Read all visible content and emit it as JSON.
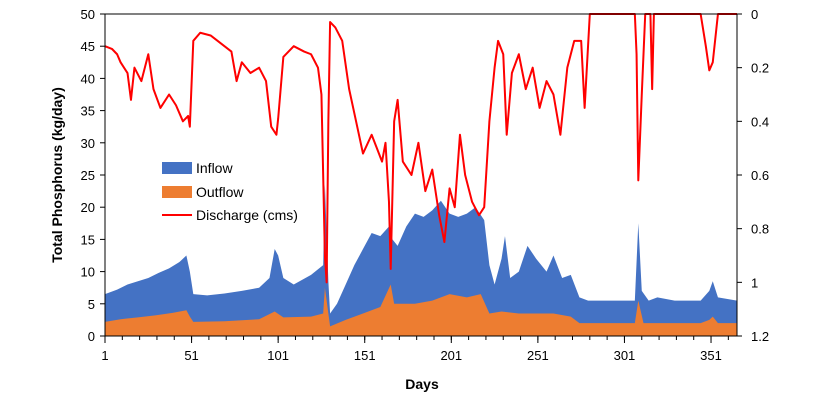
{
  "chart_data": {
    "type": "area",
    "title": "",
    "xlabel": "Days",
    "ylabel": "Total Phosphorus (kg/day)",
    "xlim": [
      1,
      366
    ],
    "ylim": [
      0,
      50
    ],
    "y2lim": [
      0,
      1.2
    ],
    "y2_inverted": true,
    "grid": false,
    "legend_position": "center-left",
    "x_ticks": [
      "1",
      "51",
      "101",
      "151",
      "201",
      "251",
      "301",
      "351"
    ],
    "y_ticks": [
      "0",
      "5",
      "10",
      "15",
      "20",
      "25",
      "30",
      "35",
      "40",
      "45",
      "50"
    ],
    "y2_ticks": [
      "0",
      "0.2",
      "0.4",
      "0.6",
      "0.8",
      "1",
      "1.2"
    ],
    "colors": {
      "inflow": "#4472C4",
      "outflow": "#ED7D31",
      "discharge": "#FF0000",
      "axis": "#000000"
    },
    "series": [
      {
        "name": "Inflow",
        "kind": "area",
        "axis": "left",
        "points": [
          [
            1,
            6.5
          ],
          [
            8,
            7.2
          ],
          [
            14,
            8.0
          ],
          [
            20,
            8.5
          ],
          [
            26,
            9.0
          ],
          [
            32,
            9.8
          ],
          [
            38,
            10.5
          ],
          [
            44,
            11.5
          ],
          [
            48,
            12.5
          ],
          [
            50,
            10.0
          ],
          [
            52,
            6.5
          ],
          [
            60,
            6.3
          ],
          [
            70,
            6.6
          ],
          [
            80,
            7.0
          ],
          [
            90,
            7.5
          ],
          [
            96,
            9.0
          ],
          [
            99,
            13.5
          ],
          [
            101,
            12.5
          ],
          [
            104,
            9.0
          ],
          [
            110,
            8.0
          ],
          [
            120,
            9.5
          ],
          [
            127,
            11.0
          ],
          [
            128,
            23.5
          ],
          [
            130,
            8.5
          ],
          [
            131,
            3.5
          ],
          [
            135,
            5.0
          ],
          [
            140,
            8.0
          ],
          [
            145,
            11.0
          ],
          [
            150,
            13.5
          ],
          [
            155,
            16.0
          ],
          [
            160,
            15.5
          ],
          [
            165,
            17.0
          ],
          [
            167,
            15.0
          ],
          [
            170,
            14.0
          ],
          [
            175,
            17.0
          ],
          [
            180,
            19.0
          ],
          [
            185,
            18.5
          ],
          [
            190,
            19.5
          ],
          [
            195,
            21.0
          ],
          [
            200,
            19.0
          ],
          [
            205,
            18.5
          ],
          [
            210,
            19.0
          ],
          [
            215,
            20.0
          ],
          [
            220,
            18.0
          ],
          [
            223,
            11.0
          ],
          [
            226,
            8.0
          ],
          [
            230,
            12.0
          ],
          [
            232,
            15.5
          ],
          [
            235,
            9.0
          ],
          [
            240,
            10.0
          ],
          [
            245,
            14.0
          ],
          [
            250,
            12.0
          ],
          [
            256,
            10.0
          ],
          [
            260,
            12.5
          ],
          [
            265,
            9.0
          ],
          [
            270,
            9.5
          ],
          [
            275,
            6.0
          ],
          [
            280,
            5.5
          ],
          [
            290,
            5.5
          ],
          [
            300,
            5.5
          ],
          [
            307,
            5.5
          ],
          [
            309,
            17.5
          ],
          [
            311,
            7.0
          ],
          [
            315,
            5.5
          ],
          [
            320,
            6.0
          ],
          [
            330,
            5.5
          ],
          [
            345,
            5.5
          ],
          [
            350,
            7.0
          ],
          [
            352,
            8.5
          ],
          [
            355,
            6.0
          ],
          [
            366,
            5.5
          ]
        ]
      },
      {
        "name": "Outflow",
        "kind": "area",
        "axis": "left",
        "points": [
          [
            1,
            2.2
          ],
          [
            10,
            2.6
          ],
          [
            20,
            2.9
          ],
          [
            30,
            3.2
          ],
          [
            40,
            3.6
          ],
          [
            48,
            4.0
          ],
          [
            50,
            3.0
          ],
          [
            52,
            2.2
          ],
          [
            70,
            2.3
          ],
          [
            90,
            2.6
          ],
          [
            99,
            3.8
          ],
          [
            104,
            2.9
          ],
          [
            120,
            3.0
          ],
          [
            127,
            3.5
          ],
          [
            128,
            7.5
          ],
          [
            131,
            1.5
          ],
          [
            140,
            2.5
          ],
          [
            150,
            3.5
          ],
          [
            160,
            4.5
          ],
          [
            166,
            8.0
          ],
          [
            168,
            5.0
          ],
          [
            180,
            5.0
          ],
          [
            190,
            5.5
          ],
          [
            200,
            6.5
          ],
          [
            210,
            6.0
          ],
          [
            218,
            6.5
          ],
          [
            223,
            3.5
          ],
          [
            230,
            3.8
          ],
          [
            240,
            3.5
          ],
          [
            250,
            3.5
          ],
          [
            260,
            3.5
          ],
          [
            270,
            3.0
          ],
          [
            275,
            2.0
          ],
          [
            290,
            2.0
          ],
          [
            307,
            2.0
          ],
          [
            309,
            5.5
          ],
          [
            312,
            2.0
          ],
          [
            345,
            2.0
          ],
          [
            350,
            2.5
          ],
          [
            352,
            3.0
          ],
          [
            355,
            2.0
          ],
          [
            366,
            2.0
          ]
        ]
      },
      {
        "name": "Discharge (cms)",
        "kind": "line",
        "axis": "right",
        "points": [
          [
            1,
            0.12
          ],
          [
            5,
            0.13
          ],
          [
            8,
            0.15
          ],
          [
            10,
            0.18
          ],
          [
            14,
            0.22
          ],
          [
            16,
            0.32
          ],
          [
            18,
            0.2
          ],
          [
            22,
            0.25
          ],
          [
            26,
            0.15
          ],
          [
            29,
            0.28
          ],
          [
            33,
            0.35
          ],
          [
            38,
            0.3
          ],
          [
            42,
            0.34
          ],
          [
            46,
            0.4
          ],
          [
            49,
            0.38
          ],
          [
            50,
            0.42
          ],
          [
            52,
            0.1
          ],
          [
            56,
            0.07
          ],
          [
            62,
            0.08
          ],
          [
            66,
            0.1
          ],
          [
            70,
            0.12
          ],
          [
            74,
            0.14
          ],
          [
            77,
            0.25
          ],
          [
            80,
            0.18
          ],
          [
            85,
            0.22
          ],
          [
            90,
            0.2
          ],
          [
            94,
            0.25
          ],
          [
            97,
            0.42
          ],
          [
            100,
            0.45
          ],
          [
            101,
            0.39
          ],
          [
            104,
            0.16
          ],
          [
            110,
            0.12
          ],
          [
            116,
            0.14
          ],
          [
            120,
            0.15
          ],
          [
            124,
            0.2
          ],
          [
            126,
            0.3
          ],
          [
            128,
            0.9
          ],
          [
            129,
            1.0
          ],
          [
            130,
            0.4
          ],
          [
            131,
            0.03
          ],
          [
            134,
            0.05
          ],
          [
            138,
            0.1
          ],
          [
            142,
            0.28
          ],
          [
            146,
            0.4
          ],
          [
            150,
            0.52
          ],
          [
            155,
            0.45
          ],
          [
            158,
            0.5
          ],
          [
            161,
            0.55
          ],
          [
            163,
            0.48
          ],
          [
            165,
            0.7
          ],
          [
            166,
            0.95
          ],
          [
            168,
            0.4
          ],
          [
            170,
            0.32
          ],
          [
            173,
            0.55
          ],
          [
            178,
            0.6
          ],
          [
            182,
            0.48
          ],
          [
            186,
            0.66
          ],
          [
            190,
            0.58
          ],
          [
            194,
            0.75
          ],
          [
            197,
            0.85
          ],
          [
            200,
            0.65
          ],
          [
            203,
            0.72
          ],
          [
            206,
            0.45
          ],
          [
            209,
            0.6
          ],
          [
            213,
            0.7
          ],
          [
            217,
            0.75
          ],
          [
            220,
            0.72
          ],
          [
            223,
            0.4
          ],
          [
            226,
            0.2
          ],
          [
            228,
            0.1
          ],
          [
            231,
            0.15
          ],
          [
            233,
            0.45
          ],
          [
            236,
            0.22
          ],
          [
            240,
            0.15
          ],
          [
            244,
            0.28
          ],
          [
            248,
            0.2
          ],
          [
            252,
            0.35
          ],
          [
            256,
            0.25
          ],
          [
            260,
            0.3
          ],
          [
            264,
            0.45
          ],
          [
            268,
            0.2
          ],
          [
            272,
            0.1
          ],
          [
            276,
            0.1
          ],
          [
            278,
            0.35
          ],
          [
            281,
            0.0
          ],
          [
            290,
            0.0
          ],
          [
            300,
            0.0
          ],
          [
            307,
            0.0
          ],
          [
            308,
            0.15
          ],
          [
            309,
            0.62
          ],
          [
            311,
            0.3
          ],
          [
            313,
            0.0
          ],
          [
            316,
            0.0
          ],
          [
            317,
            0.28
          ],
          [
            318,
            0.0
          ],
          [
            321,
            0.0
          ],
          [
            340,
            0.0
          ],
          [
            345,
            0.0
          ],
          [
            348,
            0.12
          ],
          [
            350,
            0.21
          ],
          [
            352,
            0.18
          ],
          [
            355,
            0.0
          ],
          [
            366,
            0.0
          ]
        ]
      }
    ]
  }
}
